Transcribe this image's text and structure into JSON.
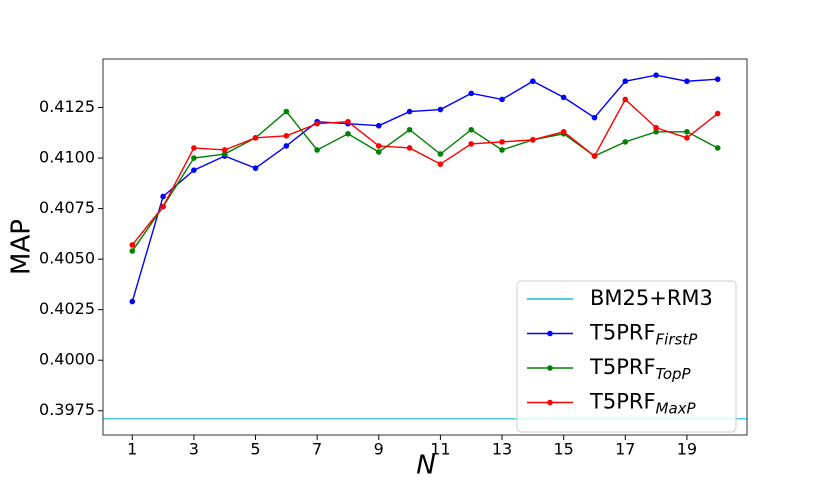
{
  "chart_data": {
    "type": "line",
    "x_label": "N",
    "y_label": "MAP",
    "x": [
      1,
      2,
      3,
      4,
      5,
      6,
      7,
      8,
      9,
      10,
      11,
      12,
      13,
      14,
      15,
      16,
      17,
      18,
      19,
      20
    ],
    "xlim": [
      0.05,
      20.95
    ],
    "xticks": [
      1,
      3,
      5,
      7,
      9,
      11,
      13,
      15,
      17,
      19
    ],
    "ylim": [
      0.3963,
      0.4149
    ],
    "yticks": [
      0.3975,
      {
        "value": 0.4,
        "label": "0.4000"
      },
      0.4025,
      {
        "value": 0.405,
        "label": "0.4050"
      },
      0.4075,
      {
        "value": 0.41,
        "label": "0.4100"
      },
      0.4125
    ],
    "grid": false,
    "legend": "lower right",
    "reference_lines": [
      {
        "name": "BM25+RM3",
        "color": "#17becf",
        "value": 0.3971
      }
    ],
    "series": [
      {
        "name": "T5PRF",
        "subscript": "FirstP",
        "color": "#0000ff",
        "values": [
          0.4029,
          0.4081,
          0.4094,
          0.4101,
          0.4095,
          0.4106,
          0.4118,
          0.4117,
          0.4116,
          0.4123,
          0.4124,
          0.4132,
          0.4129,
          0.4138,
          0.413,
          0.412,
          0.4138,
          0.4141,
          0.4138,
          0.4139
        ]
      },
      {
        "name": "T5PRF",
        "subscript": "TopP",
        "color": "#008000",
        "values": [
          0.4054,
          0.4076,
          0.41,
          0.4102,
          0.411,
          0.4123,
          0.4104,
          0.4112,
          0.4103,
          0.4114,
          0.4102,
          0.4114,
          0.4104,
          0.4109,
          0.4112,
          0.4101,
          0.4108,
          0.4113,
          0.4113,
          0.4105
        ]
      },
      {
        "name": "T5PRF",
        "subscript": "MaxP",
        "color": "#ff0000",
        "values": [
          0.4057,
          0.4076,
          0.4105,
          0.4104,
          0.411,
          0.4111,
          0.4117,
          0.4118,
          0.4106,
          0.4105,
          0.4097,
          0.4107,
          0.4108,
          0.4109,
          0.4113,
          0.4101,
          0.4129,
          0.4115,
          0.411,
          0.4122
        ]
      }
    ]
  }
}
